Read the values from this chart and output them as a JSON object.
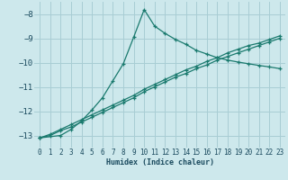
{
  "xlabel": "Humidex (Indice chaleur)",
  "bg_color": "#cde8ec",
  "grid_color": "#a8cdd4",
  "line_color": "#1a7a6e",
  "xlim": [
    -0.5,
    23.5
  ],
  "ylim": [
    -13.5,
    -7.5
  ],
  "yticks": [
    -13,
    -12,
    -11,
    -10,
    -9,
    -8
  ],
  "xticks": [
    0,
    1,
    2,
    3,
    4,
    5,
    6,
    7,
    8,
    9,
    10,
    11,
    12,
    13,
    14,
    15,
    16,
    17,
    18,
    19,
    20,
    21,
    22,
    23
  ],
  "line1_x": [
    0,
    1,
    2,
    3,
    4,
    5,
    6,
    7,
    8,
    9,
    10,
    11,
    12,
    13,
    14,
    15,
    16,
    17,
    18,
    19,
    20,
    21,
    22,
    23
  ],
  "line1_y": [
    -13.1,
    -12.95,
    -12.75,
    -12.55,
    -12.35,
    -12.15,
    -11.95,
    -11.75,
    -11.55,
    -11.35,
    -11.1,
    -10.9,
    -10.7,
    -10.5,
    -10.3,
    -10.15,
    -9.95,
    -9.8,
    -9.6,
    -9.45,
    -9.3,
    -9.2,
    -9.05,
    -8.9
  ],
  "line2_x": [
    0,
    1,
    2,
    3,
    4,
    5,
    6,
    7,
    8,
    9,
    10,
    11,
    12,
    13,
    14,
    15,
    16,
    17,
    18,
    19,
    20,
    21,
    22,
    23
  ],
  "line2_y": [
    -13.1,
    -13.0,
    -12.8,
    -12.65,
    -12.45,
    -12.25,
    -12.05,
    -11.85,
    -11.65,
    -11.45,
    -11.2,
    -11.0,
    -10.8,
    -10.6,
    -10.45,
    -10.25,
    -10.1,
    -9.9,
    -9.75,
    -9.6,
    -9.45,
    -9.3,
    -9.15,
    -9.0
  ],
  "line3_x": [
    0,
    2,
    3,
    4,
    5,
    6,
    7,
    8,
    9,
    10,
    11,
    12,
    13,
    14,
    15,
    16,
    17,
    18,
    19,
    20,
    21,
    22,
    23
  ],
  "line3_y": [
    -13.1,
    -13.0,
    -12.75,
    -12.4,
    -11.95,
    -11.45,
    -10.75,
    -10.05,
    -8.95,
    -7.82,
    -8.5,
    -8.8,
    -9.05,
    -9.25,
    -9.5,
    -9.65,
    -9.8,
    -9.9,
    -9.98,
    -10.05,
    -10.12,
    -10.18,
    -10.25
  ]
}
